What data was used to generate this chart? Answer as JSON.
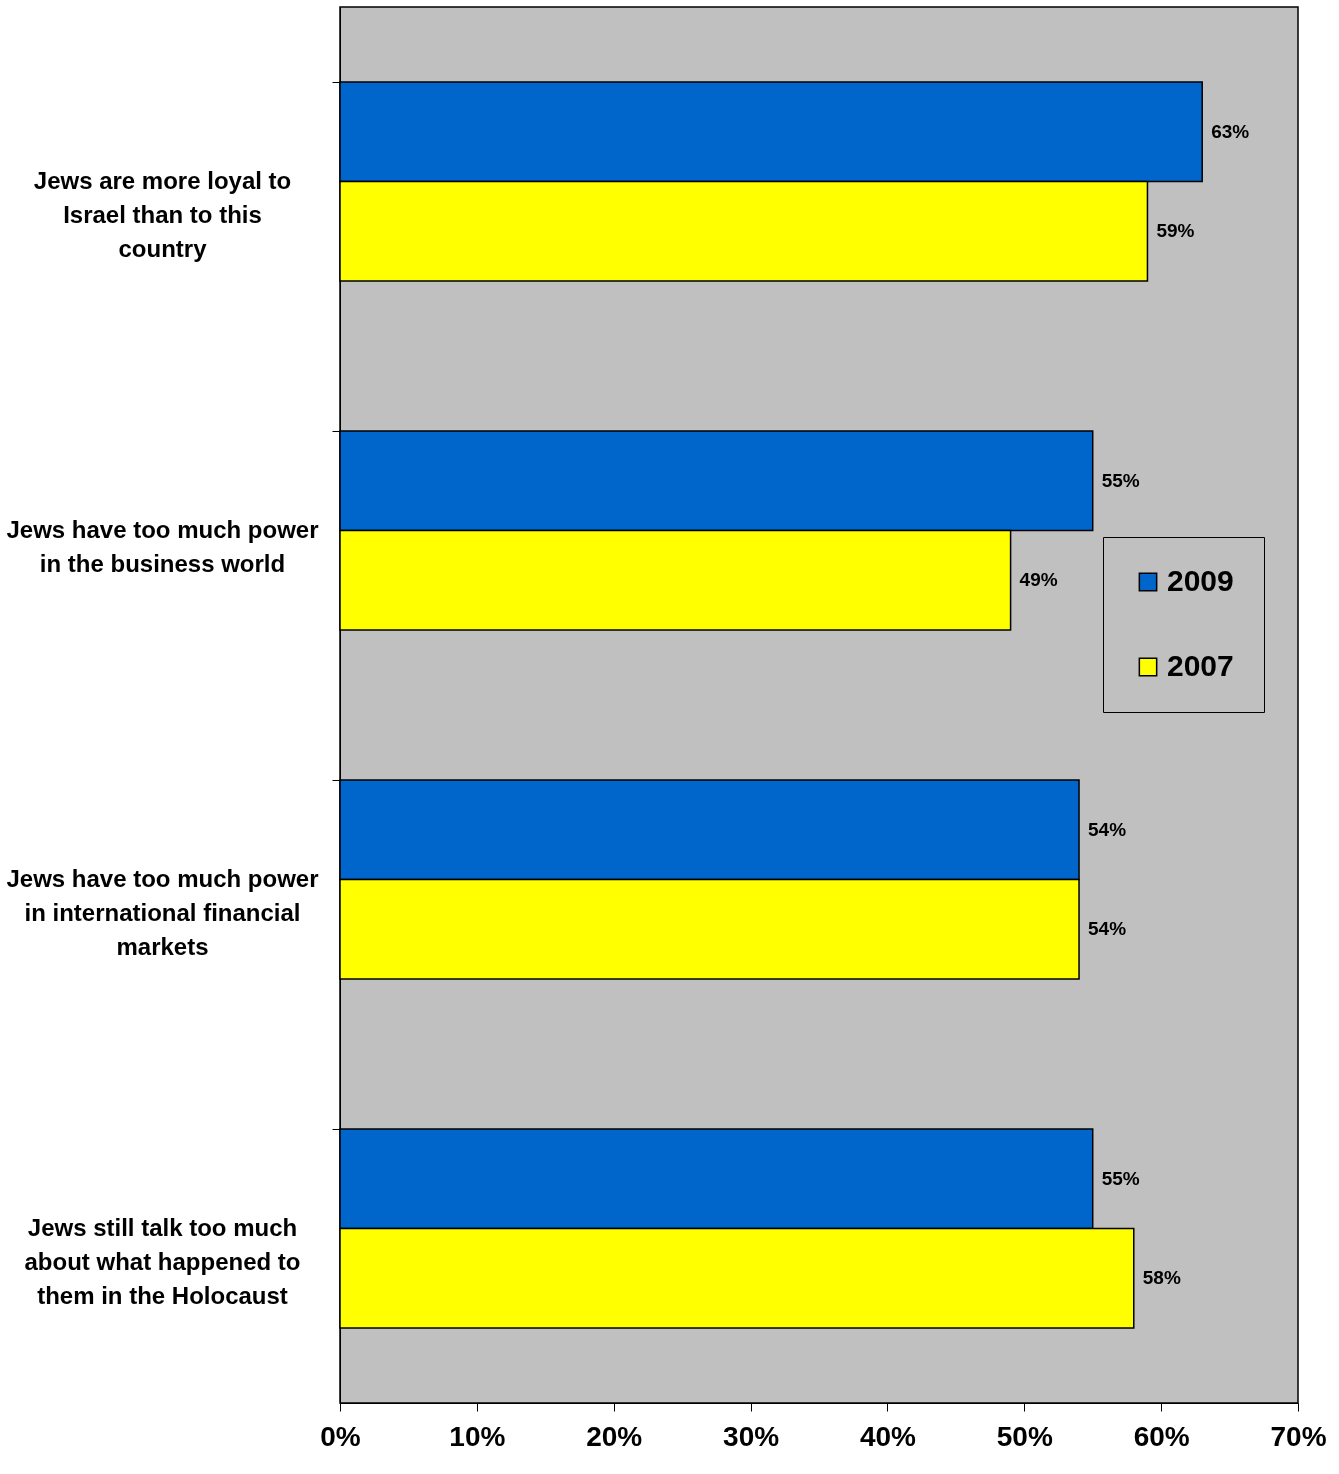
{
  "chart_data": {
    "type": "bar",
    "orientation": "horizontal",
    "categories": [
      "Jews are more loyal to Israel than to this country",
      "Jews have too much power in the business world",
      "Jews have too much power in international financial markets",
      "Jews still talk too much about what happened to them in the Holocaust"
    ],
    "series": [
      {
        "name": "2009",
        "color": "#0066cc",
        "values": [
          63,
          55,
          54,
          55
        ],
        "value_labels": [
          "63%",
          "55%",
          "54%",
          "55%"
        ]
      },
      {
        "name": "2007",
        "color": "#ffff00",
        "values": [
          59,
          49,
          54,
          58
        ],
        "value_labels": [
          "59%",
          "49%",
          "54%",
          "58%"
        ]
      }
    ],
    "xlim": [
      0,
      70
    ],
    "xticks": [
      {
        "value": 0,
        "label": "0%"
      },
      {
        "value": 10,
        "label": "10%"
      },
      {
        "value": 20,
        "label": "20%"
      },
      {
        "value": 30,
        "label": "30%"
      },
      {
        "value": 40,
        "label": "40%"
      },
      {
        "value": 50,
        "label": "50%"
      },
      {
        "value": 60,
        "label": "60%"
      },
      {
        "value": 70,
        "label": "70%"
      }
    ],
    "grid": false,
    "legend": "right"
  }
}
